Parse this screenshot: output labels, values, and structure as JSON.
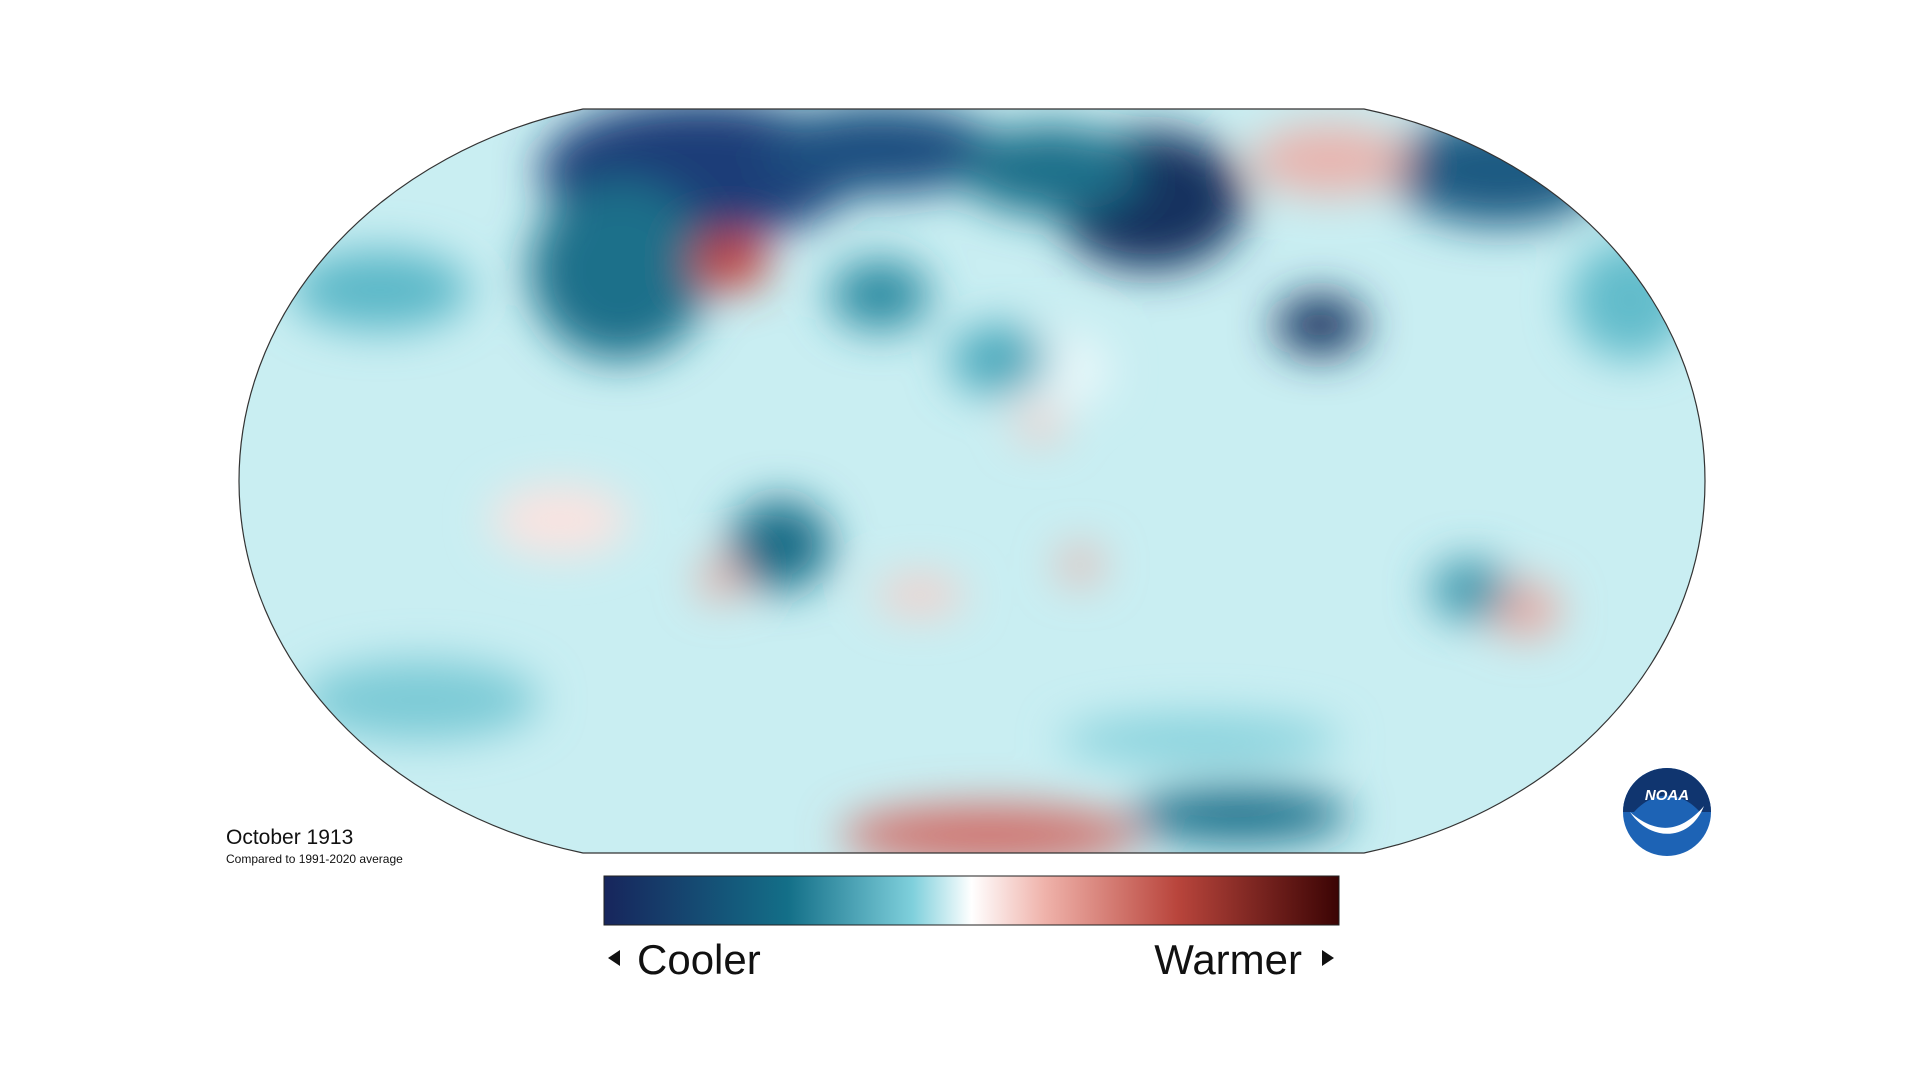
{
  "title": "October 1913",
  "subtitle": "Compared to 1991-2020 average",
  "legend": {
    "low": "Cooler",
    "high": "Warmer"
  },
  "logo": "NOAA"
}
